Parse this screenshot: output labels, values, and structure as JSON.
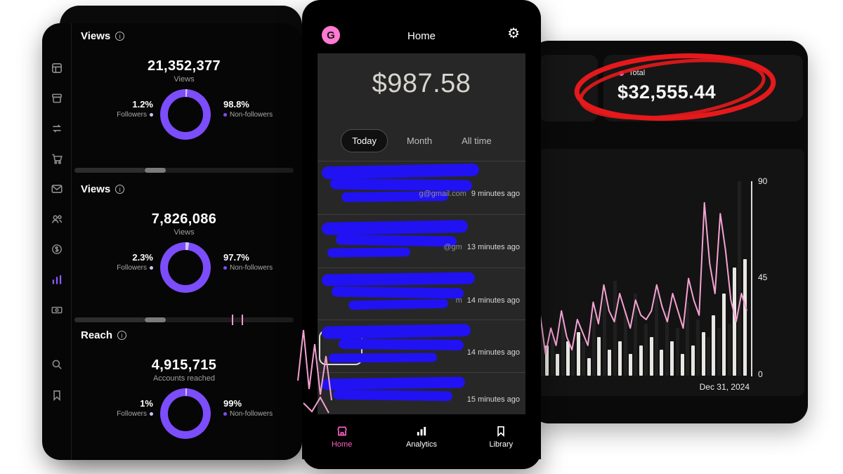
{
  "colors": {
    "accent_purple": "#7c4dfa",
    "donut_light": "#cfc2f9",
    "pink": "#ff6ec7",
    "scribble_blue": "#2012f2",
    "annotation_red": "#e5191c"
  },
  "left_panel": {
    "info_glyph": "i",
    "sidebar_icons": [
      "grid",
      "orders",
      "swap",
      "cart",
      "messages",
      "audience",
      "monetization",
      "insights",
      "payouts",
      "search",
      "bookmark"
    ],
    "sections": [
      {
        "title": "Views",
        "value": "21,352,377",
        "caption": "Views",
        "left_pct": "1.2%",
        "left_label": "Followers",
        "right_pct": "98.8%",
        "right_label": "Non-followers",
        "followers_pct": 1.2
      },
      {
        "title": "Views",
        "value": "7,826,086",
        "caption": "Views",
        "left_pct": "2.3%",
        "left_label": "Followers",
        "right_pct": "97.7%",
        "right_label": "Non-followers",
        "followers_pct": 2.3
      },
      {
        "title": "Reach",
        "value": "4,915,715",
        "caption": "Accounts reached",
        "left_pct": "1%",
        "left_label": "Followers",
        "right_pct": "99%",
        "right_label": "Non-followers",
        "followers_pct": 1
      }
    ]
  },
  "phone": {
    "header": {
      "logo": "G",
      "title": "Home",
      "gear_glyph": "⚙"
    },
    "balance": "$987.58",
    "tabs": [
      {
        "label": "Today",
        "active": true
      },
      {
        "label": "Month",
        "active": false
      },
      {
        "label": "All time",
        "active": false
      }
    ],
    "transactions": [
      {
        "fragment": "g@gmail.com",
        "time": "9 minutes ago"
      },
      {
        "fragment": "@gm",
        "time": "13 minutes ago"
      },
      {
        "fragment": "m",
        "time": "14 minutes ago"
      },
      {
        "fragment": "",
        "time": "14 minutes ago"
      },
      {
        "fragment": "",
        "time": "15 minutes ago"
      }
    ],
    "nav": [
      {
        "label": "Home",
        "active": true
      },
      {
        "label": "Analytics",
        "active": false
      },
      {
        "label": "Library",
        "active": false
      }
    ]
  },
  "right_panel": {
    "total_label": "Total",
    "total_value": "$32,555.44",
    "chart_data": {
      "type": "combo",
      "bar_values": [
        22,
        14,
        18,
        10,
        26,
        16,
        12,
        20,
        16,
        8,
        28,
        18,
        36,
        12,
        44,
        16,
        30,
        10,
        38,
        14,
        24,
        18,
        40,
        12,
        30,
        16,
        22,
        10,
        34,
        14,
        26,
        20,
        18,
        28,
        22,
        38,
        24,
        50,
        90,
        54
      ],
      "bar_shades": [
        "d",
        "l",
        "d",
        "l",
        "d",
        "l",
        "d",
        "l",
        "d",
        "l",
        "d",
        "l",
        "d",
        "l",
        "d",
        "l",
        "d",
        "l",
        "d",
        "l",
        "d",
        "l",
        "d",
        "l",
        "d",
        "l",
        "d",
        "l",
        "d",
        "l",
        "d",
        "l",
        "d",
        "l",
        "d",
        "l",
        "d",
        "l",
        "d",
        "l"
      ],
      "line_values": [
        28,
        10,
        22,
        14,
        30,
        18,
        12,
        26,
        20,
        14,
        34,
        24,
        42,
        30,
        25,
        38,
        30,
        22,
        35,
        28,
        26,
        30,
        42,
        32,
        25,
        38,
        30,
        22,
        45,
        35,
        28,
        80,
        52,
        38,
        75,
        58,
        35,
        25,
        38,
        30
      ],
      "ylim": [
        0,
        90
      ],
      "ytick_labels": [
        "90",
        "45",
        "0"
      ],
      "xlabel": "Dec 31, 2024",
      "bar_color_dark": "#202020",
      "bar_color_light": "#e9e7e3",
      "line_color": "#f4a3d3"
    }
  }
}
